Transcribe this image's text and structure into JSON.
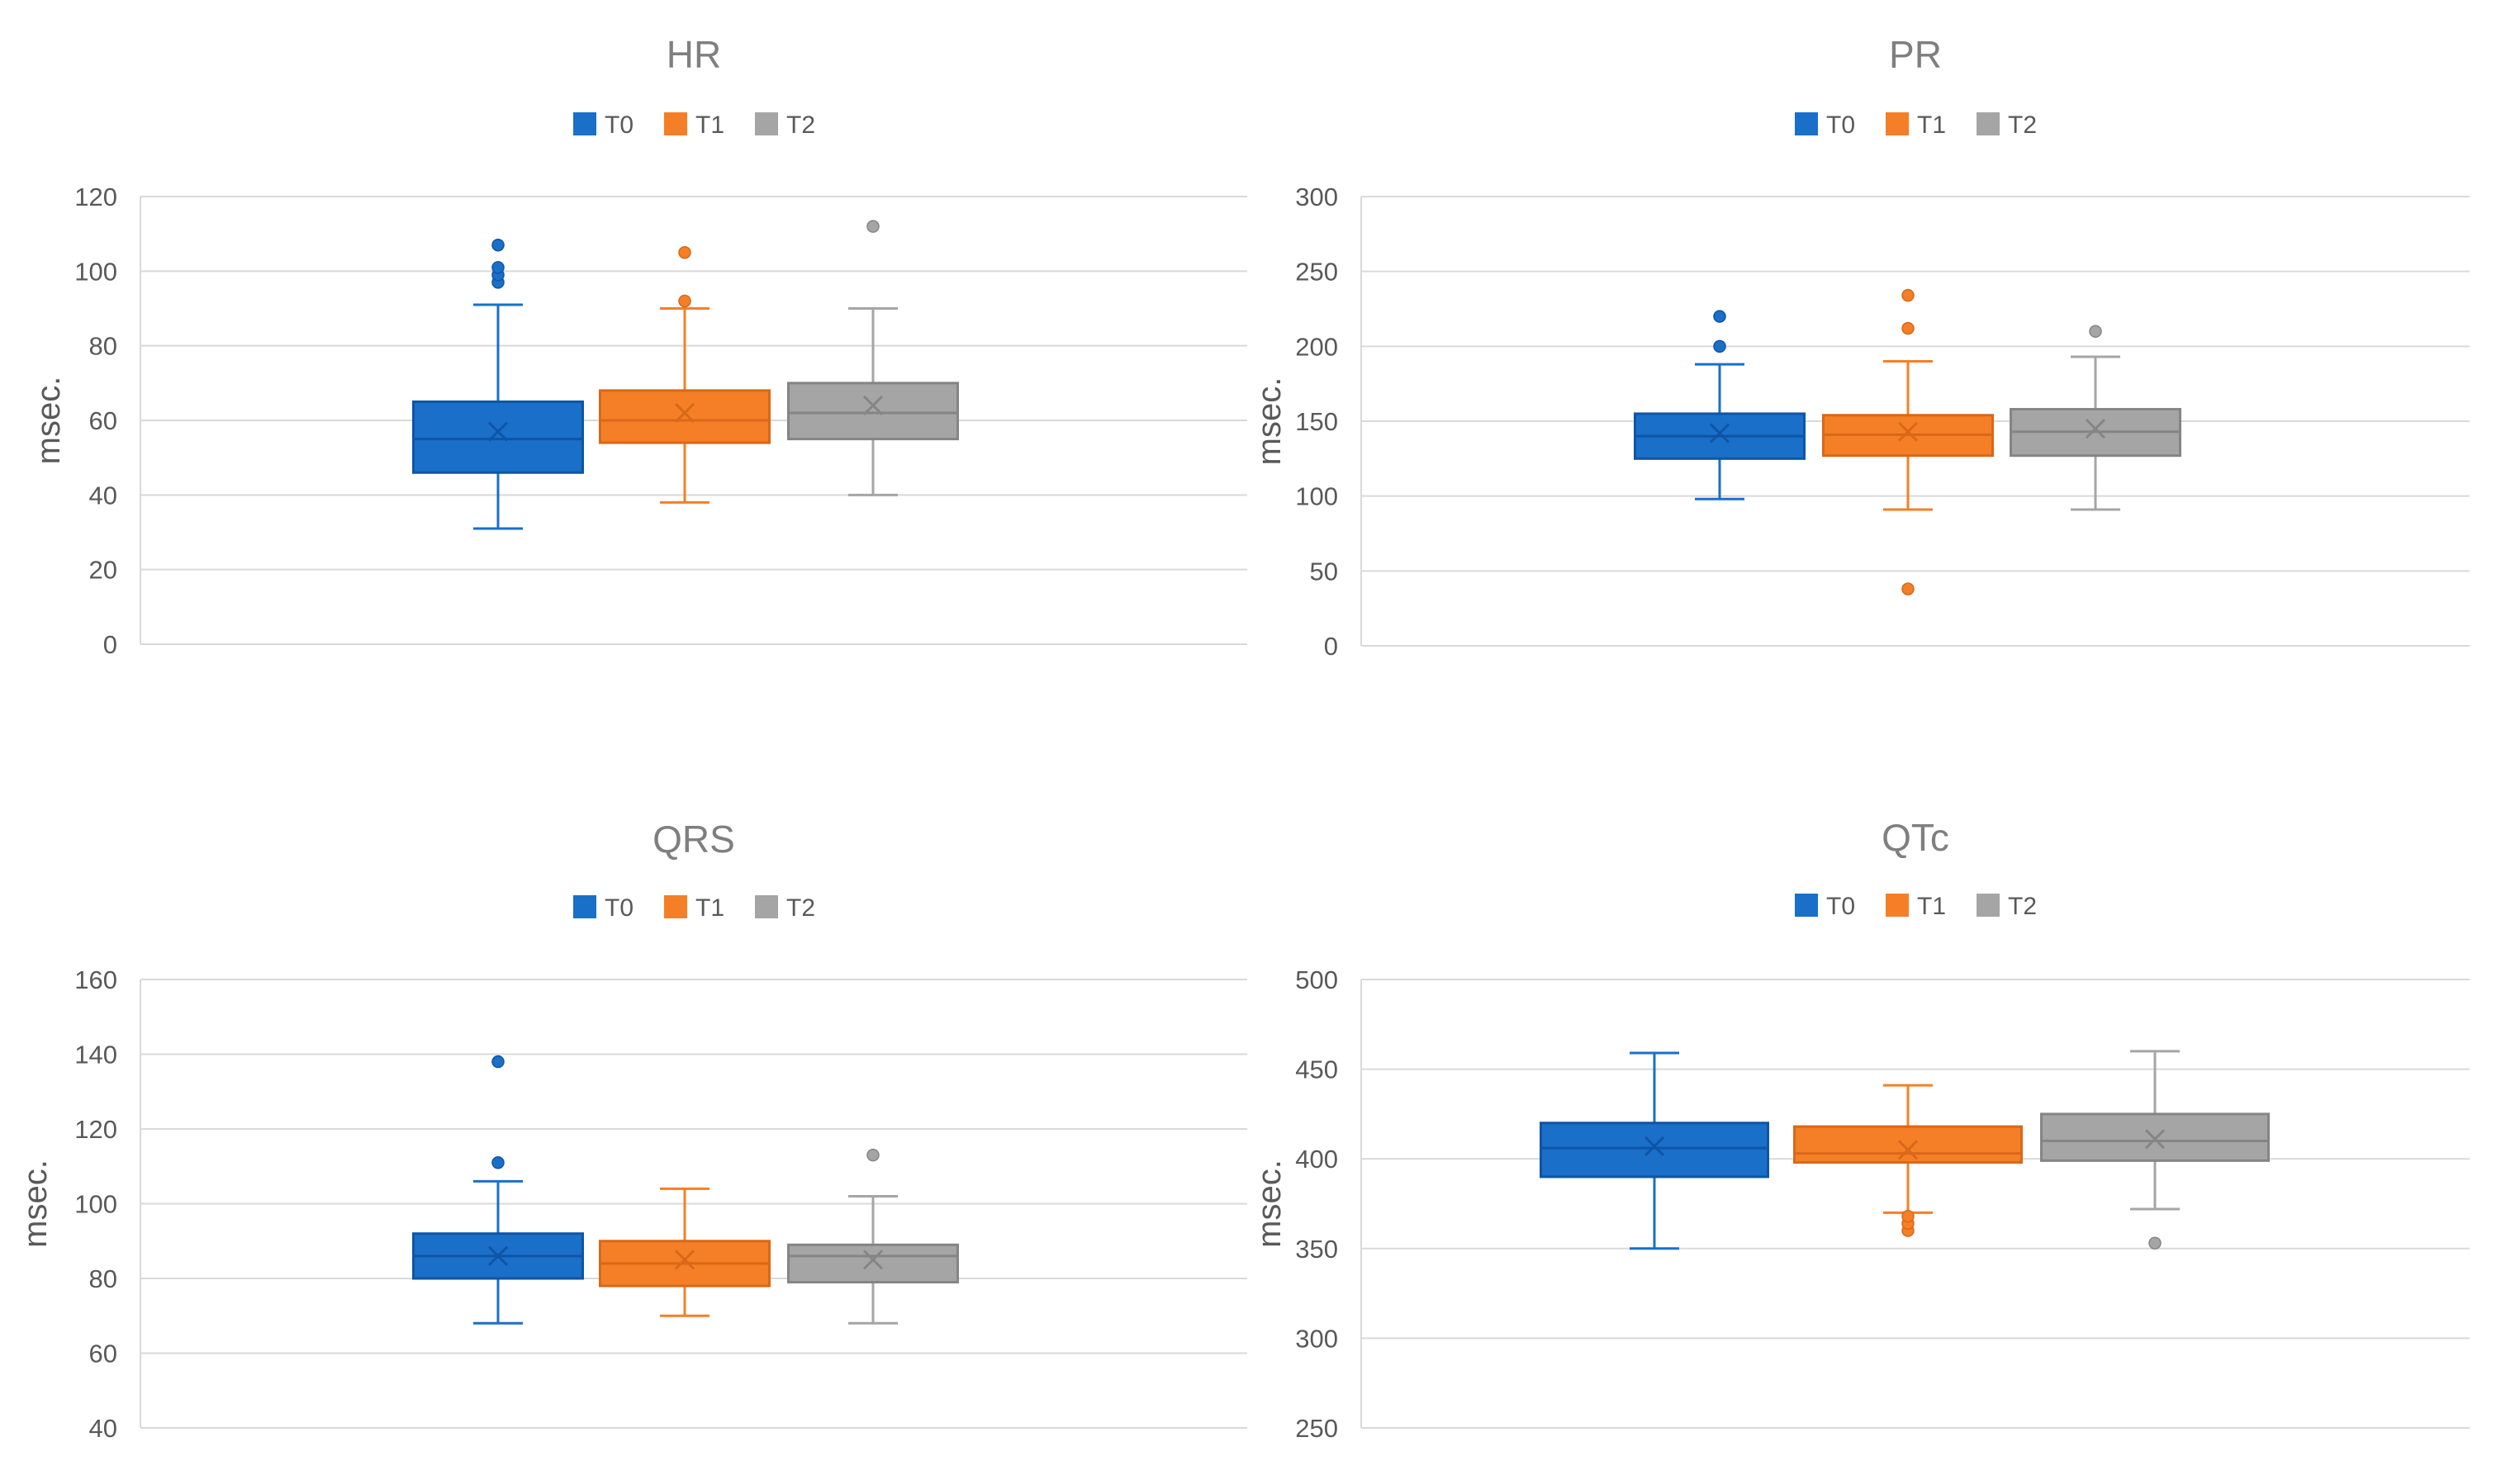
{
  "legend_labels": [
    "T0",
    "T1",
    "T2"
  ],
  "colors": {
    "T0": "#1a6fc9",
    "T1": "#f57f26",
    "T2": "#a5a5a5",
    "T0_dark": "#0e55a6",
    "T1_dark": "#d8681a",
    "T2_dark": "#858585",
    "grid": "#d9d9d9",
    "axis_text": "#595959",
    "title_text": "#7f7f7f"
  },
  "chart_data": [
    {
      "type": "box",
      "title": "HR",
      "ylabel": "msec.",
      "ylim": [
        0,
        120
      ],
      "yticks": [
        0,
        20,
        40,
        60,
        80,
        100,
        120
      ],
      "series": [
        {
          "name": "T0",
          "min": 31,
          "q1": 46,
          "median": 55,
          "q3": 65,
          "max": 91,
          "mean": 57,
          "outliers": [
            97,
            99,
            101,
            107
          ]
        },
        {
          "name": "T1",
          "min": 38,
          "q1": 54,
          "median": 60,
          "q3": 68,
          "max": 90,
          "mean": 62,
          "outliers": [
            92,
            105
          ]
        },
        {
          "name": "T2",
          "min": 40,
          "q1": 55,
          "median": 62,
          "q3": 70,
          "max": 90,
          "mean": 64,
          "outliers": [
            112
          ]
        }
      ]
    },
    {
      "type": "box",
      "title": "PR",
      "ylabel": "msec.",
      "ylim": [
        0,
        300
      ],
      "yticks": [
        0,
        50,
        100,
        150,
        200,
        250,
        300
      ],
      "series": [
        {
          "name": "T0",
          "min": 98,
          "q1": 125,
          "median": 140,
          "q3": 155,
          "max": 188,
          "mean": 142,
          "outliers": [
            200,
            220
          ]
        },
        {
          "name": "T1",
          "min": 91,
          "q1": 127,
          "median": 141,
          "q3": 154,
          "max": 190,
          "mean": 143,
          "outliers": [
            38,
            212,
            234
          ]
        },
        {
          "name": "T2",
          "min": 91,
          "q1": 127,
          "median": 143,
          "q3": 158,
          "max": 193,
          "mean": 145,
          "outliers": [
            210
          ]
        }
      ]
    },
    {
      "type": "box",
      "title": "QRS",
      "ylabel": "msec.",
      "ylim": [
        40,
        160
      ],
      "yticks": [
        40,
        60,
        80,
        100,
        120,
        140,
        160
      ],
      "series": [
        {
          "name": "T0",
          "min": 68,
          "q1": 80,
          "median": 86,
          "q3": 92,
          "max": 106,
          "mean": 86,
          "outliers": [
            111,
            138
          ]
        },
        {
          "name": "T1",
          "min": 70,
          "q1": 78,
          "median": 84,
          "q3": 90,
          "max": 104,
          "mean": 85,
          "outliers": []
        },
        {
          "name": "T2",
          "min": 68,
          "q1": 79,
          "median": 86,
          "q3": 89,
          "max": 102,
          "mean": 85,
          "outliers": [
            113
          ]
        }
      ]
    },
    {
      "type": "box",
      "title": "QTc",
      "ylabel": "msec.",
      "ylim": [
        250,
        500
      ],
      "yticks": [
        250,
        300,
        350,
        400,
        450,
        500
      ],
      "series": [
        {
          "name": "T0",
          "min": 350,
          "q1": 390,
          "median": 406,
          "q3": 420,
          "max": 459,
          "mean": 407,
          "outliers": []
        },
        {
          "name": "T1",
          "min": 370,
          "q1": 398,
          "median": 403,
          "q3": 418,
          "max": 441,
          "mean": 405,
          "outliers": [
            360,
            364,
            368
          ]
        },
        {
          "name": "T2",
          "min": 372,
          "q1": 399,
          "median": 410,
          "q3": 425,
          "max": 460,
          "mean": 411,
          "outliers": [
            353
          ]
        }
      ]
    }
  ]
}
